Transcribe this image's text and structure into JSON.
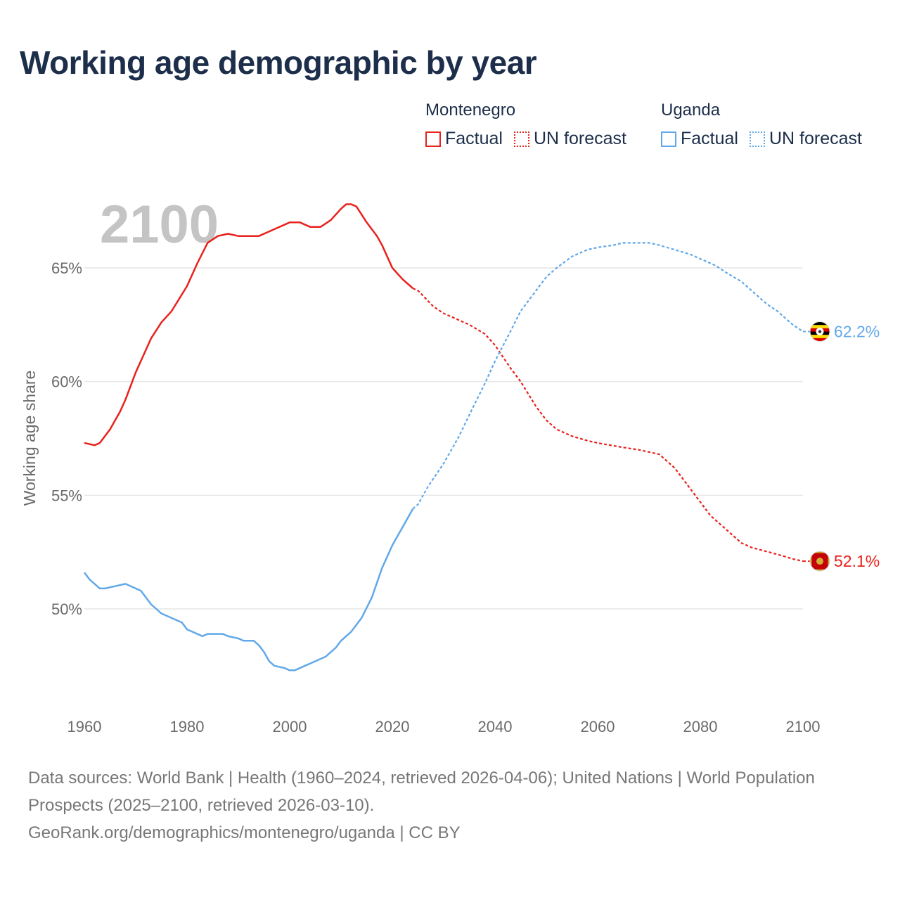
{
  "title": "Working age demographic by year",
  "year_overlay": "2100",
  "legend": {
    "groups": [
      {
        "name": "Montenegro",
        "color": "#e8221c",
        "factual_label": "Factual",
        "forecast_label": "UN forecast"
      },
      {
        "name": "Uganda",
        "color": "#62a8e8",
        "factual_label": "Factual",
        "forecast_label": "UN forecast"
      }
    ]
  },
  "footer": {
    "sources": "Data sources: World Bank | Health (1960–2024, retrieved 2026-04-06); United Nations | World Population Prospects (2025–2100, retrieved 2026-03-10).",
    "link": "GeoRank.org/demographics/montenegro/uganda | CC BY"
  },
  "chart_data": {
    "type": "line",
    "title": "Working age demographic by year",
    "xlabel": "",
    "ylabel": "Working age share",
    "xlim": [
      1960,
      2100
    ],
    "ylim": [
      46,
      68
    ],
    "x_ticks": [
      1960,
      1980,
      2000,
      2020,
      2040,
      2060,
      2080,
      2100
    ],
    "y_ticks": [
      50,
      55,
      60,
      65
    ],
    "y_tick_labels": [
      "50%",
      "55%",
      "60%",
      "65%"
    ],
    "grid": true,
    "factual_end_year": 2024,
    "series": [
      {
        "name": "Montenegro",
        "color": "#e8221c",
        "end_label": "52.1%",
        "flag_icon": "montenegro-flag-icon",
        "points": [
          [
            1960,
            57.3
          ],
          [
            1962,
            57.2
          ],
          [
            1963,
            57.3
          ],
          [
            1965,
            57.9
          ],
          [
            1967,
            58.7
          ],
          [
            1968,
            59.2
          ],
          [
            1970,
            60.4
          ],
          [
            1972,
            61.4
          ],
          [
            1973,
            61.9
          ],
          [
            1975,
            62.6
          ],
          [
            1977,
            63.1
          ],
          [
            1980,
            64.2
          ],
          [
            1982,
            65.2
          ],
          [
            1984,
            66.1
          ],
          [
            1986,
            66.4
          ],
          [
            1988,
            66.5
          ],
          [
            1990,
            66.4
          ],
          [
            1994,
            66.4
          ],
          [
            1997,
            66.7
          ],
          [
            2000,
            67.0
          ],
          [
            2002,
            67.0
          ],
          [
            2004,
            66.8
          ],
          [
            2006,
            66.8
          ],
          [
            2008,
            67.1
          ],
          [
            2010,
            67.6
          ],
          [
            2011,
            67.8
          ],
          [
            2012,
            67.8
          ],
          [
            2013,
            67.7
          ],
          [
            2015,
            67.0
          ],
          [
            2017,
            66.4
          ],
          [
            2018,
            66.0
          ],
          [
            2020,
            65.0
          ],
          [
            2022,
            64.5
          ],
          [
            2024,
            64.1
          ],
          [
            2025,
            64.0
          ],
          [
            2028,
            63.3
          ],
          [
            2030,
            63.0
          ],
          [
            2035,
            62.5
          ],
          [
            2038,
            62.1
          ],
          [
            2040,
            61.6
          ],
          [
            2043,
            60.6
          ],
          [
            2045,
            60.0
          ],
          [
            2048,
            58.9
          ],
          [
            2050,
            58.3
          ],
          [
            2052,
            57.9
          ],
          [
            2055,
            57.6
          ],
          [
            2058,
            57.4
          ],
          [
            2060,
            57.3
          ],
          [
            2065,
            57.1
          ],
          [
            2068,
            57.0
          ],
          [
            2072,
            56.8
          ],
          [
            2075,
            56.2
          ],
          [
            2078,
            55.3
          ],
          [
            2080,
            54.7
          ],
          [
            2082,
            54.1
          ],
          [
            2085,
            53.5
          ],
          [
            2088,
            52.9
          ],
          [
            2090,
            52.7
          ],
          [
            2095,
            52.4
          ],
          [
            2098,
            52.2
          ],
          [
            2100,
            52.1
          ]
        ]
      },
      {
        "name": "Uganda",
        "color": "#62a8e8",
        "end_label": "62.2%",
        "flag_icon": "uganda-flag-icon",
        "points": [
          [
            1960,
            51.6
          ],
          [
            1961,
            51.3
          ],
          [
            1963,
            50.9
          ],
          [
            1964,
            50.9
          ],
          [
            1966,
            51.0
          ],
          [
            1968,
            51.1
          ],
          [
            1970,
            50.9
          ],
          [
            1971,
            50.8
          ],
          [
            1973,
            50.2
          ],
          [
            1975,
            49.8
          ],
          [
            1977,
            49.6
          ],
          [
            1979,
            49.4
          ],
          [
            1980,
            49.1
          ],
          [
            1983,
            48.8
          ],
          [
            1984,
            48.9
          ],
          [
            1987,
            48.9
          ],
          [
            1988,
            48.8
          ],
          [
            1990,
            48.7
          ],
          [
            1991,
            48.6
          ],
          [
            1993,
            48.6
          ],
          [
            1994,
            48.4
          ],
          [
            1995,
            48.1
          ],
          [
            1996,
            47.7
          ],
          [
            1997,
            47.5
          ],
          [
            1999,
            47.4
          ],
          [
            2000,
            47.3
          ],
          [
            2001,
            47.3
          ],
          [
            2003,
            47.5
          ],
          [
            2005,
            47.7
          ],
          [
            2007,
            47.9
          ],
          [
            2009,
            48.3
          ],
          [
            2010,
            48.6
          ],
          [
            2012,
            49.0
          ],
          [
            2014,
            49.6
          ],
          [
            2016,
            50.5
          ],
          [
            2018,
            51.8
          ],
          [
            2020,
            52.8
          ],
          [
            2022,
            53.6
          ],
          [
            2023,
            54.0
          ],
          [
            2024,
            54.4
          ],
          [
            2025,
            54.6
          ],
          [
            2027,
            55.4
          ],
          [
            2030,
            56.4
          ],
          [
            2033,
            57.6
          ],
          [
            2036,
            59.0
          ],
          [
            2038,
            59.9
          ],
          [
            2040,
            60.9
          ],
          [
            2043,
            62.2
          ],
          [
            2045,
            63.1
          ],
          [
            2048,
            64.0
          ],
          [
            2050,
            64.6
          ],
          [
            2052,
            65.0
          ],
          [
            2055,
            65.5
          ],
          [
            2058,
            65.8
          ],
          [
            2060,
            65.9
          ],
          [
            2063,
            66.0
          ],
          [
            2065,
            66.1
          ],
          [
            2070,
            66.1
          ],
          [
            2072,
            66.0
          ],
          [
            2075,
            65.8
          ],
          [
            2078,
            65.6
          ],
          [
            2080,
            65.4
          ],
          [
            2083,
            65.1
          ],
          [
            2085,
            64.8
          ],
          [
            2088,
            64.4
          ],
          [
            2090,
            64.0
          ],
          [
            2093,
            63.4
          ],
          [
            2095,
            63.1
          ],
          [
            2098,
            62.5
          ],
          [
            2100,
            62.2
          ]
        ]
      }
    ]
  }
}
